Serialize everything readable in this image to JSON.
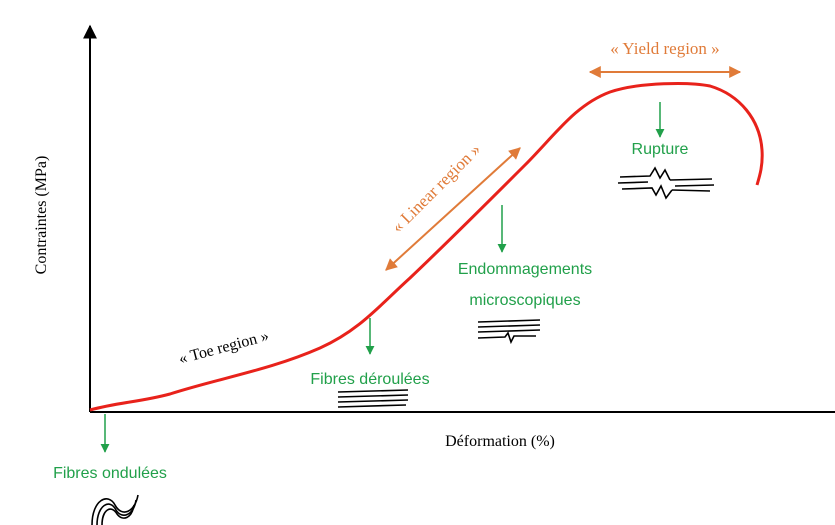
{
  "axes": {
    "y_label": "Contraintes (MPa)",
    "x_label": "Déformation (%)"
  },
  "regions": {
    "toe": "« Toe region »",
    "linear": "« Linear region »",
    "yield": "« Yield region »"
  },
  "annotations": {
    "fibres_ondulees": "Fibres ondulées",
    "fibres_deroulees": "Fibres déroulées",
    "endommagements": [
      "Endommagements",
      "microscopiques"
    ],
    "rupture": "Rupture"
  }
}
